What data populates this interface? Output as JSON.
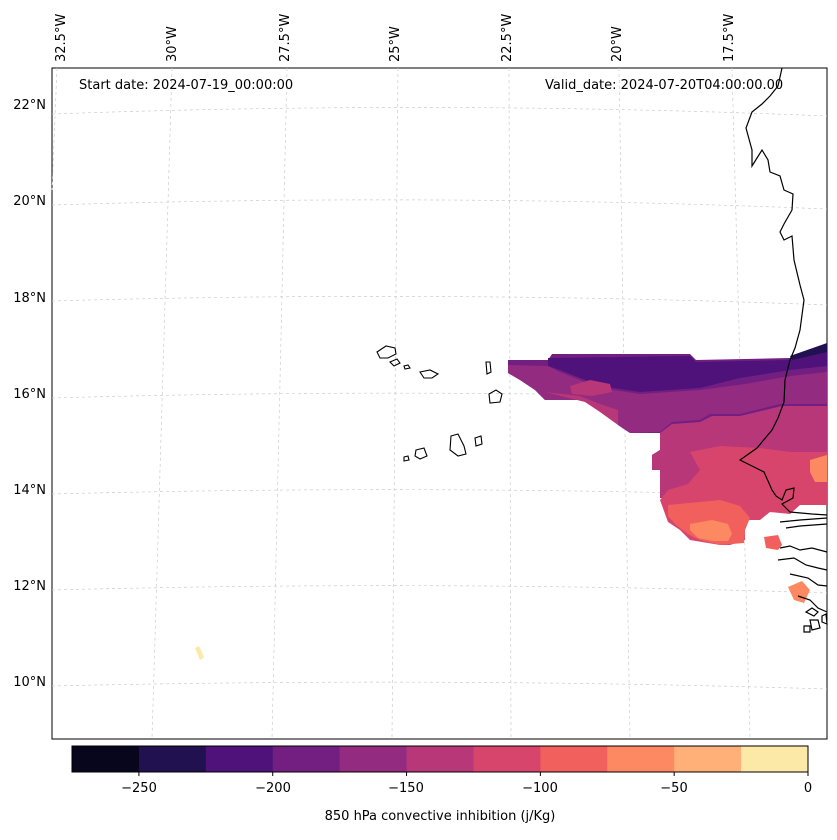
{
  "map": {
    "start_date": "Start date: 2024-07-19_00:00:00",
    "valid_date": "Valid_date: 2024-07-20T04:00:00.00",
    "lon_labels": [
      "32.5°W",
      "30°W",
      "27.5°W",
      "25°W",
      "22.5°W",
      "20°W",
      "17.5°W"
    ],
    "lat_labels": [
      "22°N",
      "20°N",
      "18°N",
      "16°N",
      "14°N",
      "12°N",
      "10°N"
    ],
    "region": "Cabo Verde and West African coast (Senegal, Gambia, Guinea-Bissau)"
  },
  "colorbar": {
    "label": "850 hPa convective inhibition (j/Kg)",
    "ticks": [
      "−250",
      "−200",
      "−150",
      "−100",
      "−50",
      "0"
    ],
    "levels": [
      -275,
      -250,
      -225,
      -200,
      -175,
      -150,
      -125,
      -100,
      -75,
      -50,
      -25,
      0
    ],
    "colors": [
      "#07061c",
      "#221150",
      "#4f127b",
      "#721f81",
      "#932b80",
      "#b73779",
      "#d8456c",
      "#f1605d",
      "#fc8961",
      "#feb078",
      "#fde9a7"
    ]
  }
}
